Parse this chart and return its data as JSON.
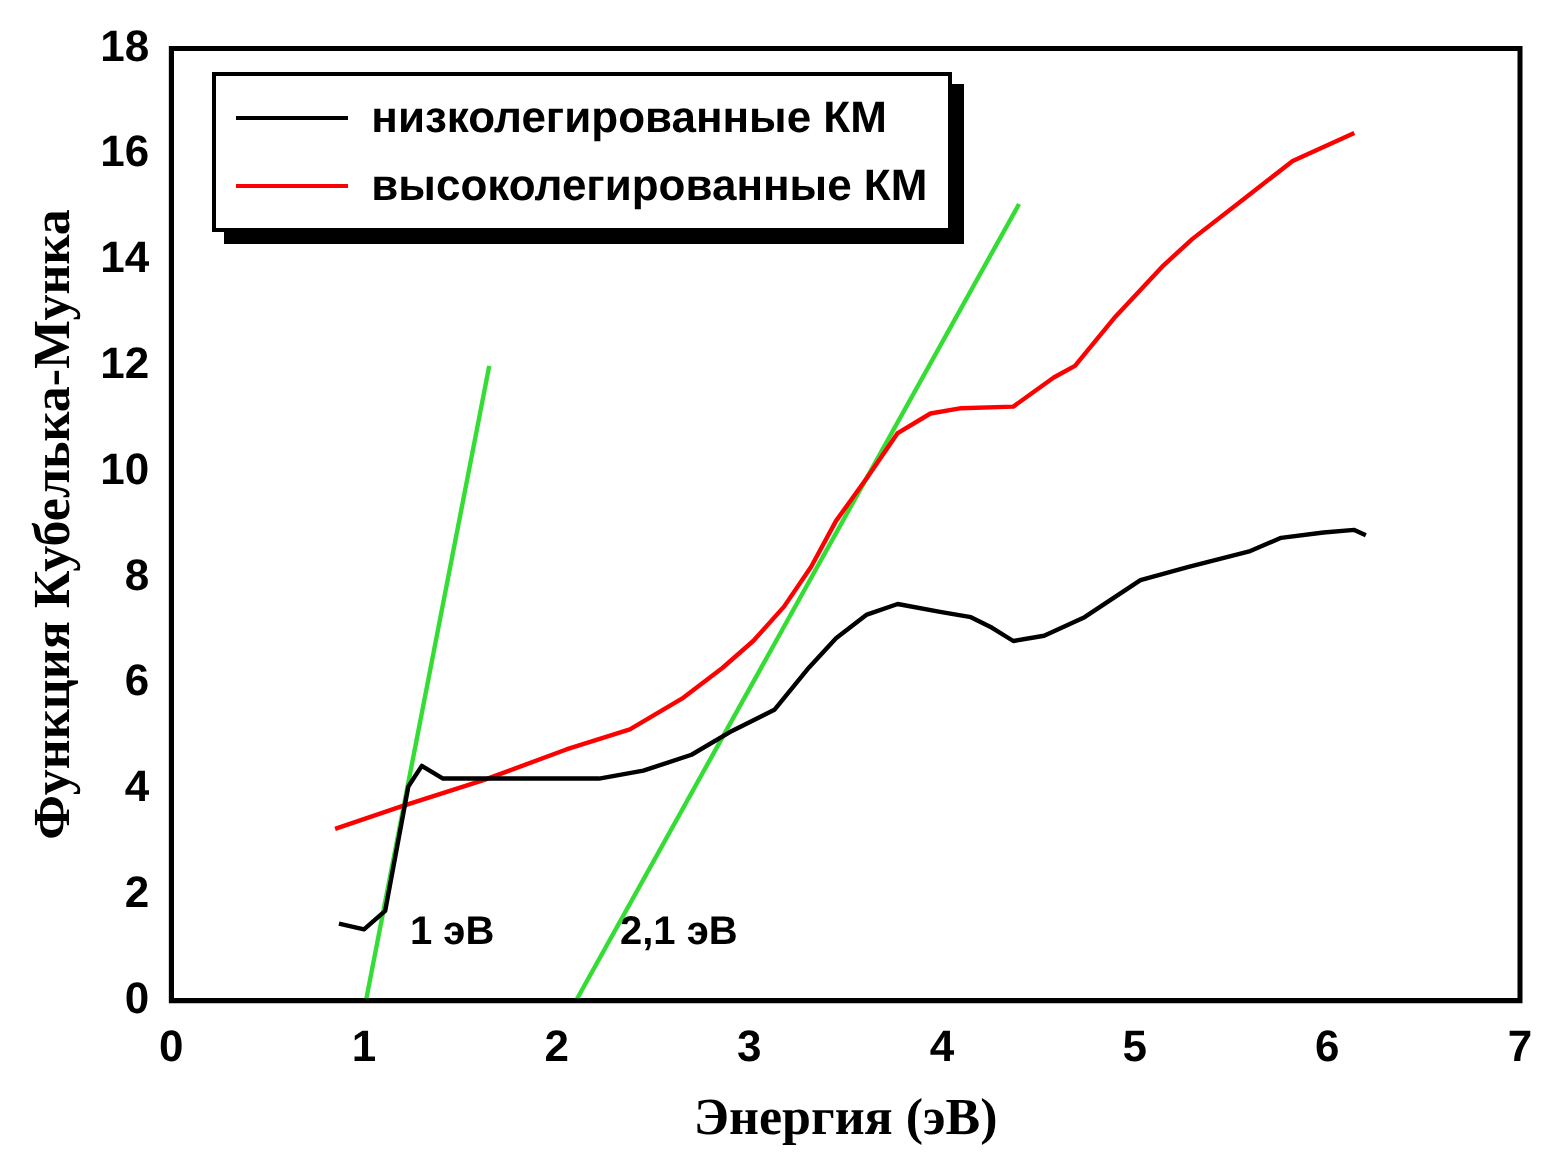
{
  "chart_data": {
    "type": "line",
    "xlabel": "Энергия (эВ)",
    "ylabel": "Функция Кубелька-Мунка",
    "xlim": [
      0,
      7
    ],
    "xticks": [
      0,
      1,
      2,
      3,
      4,
      5,
      6,
      7
    ],
    "ylim": [
      0,
      18
    ],
    "yticks": [
      0,
      2,
      4,
      6,
      8,
      10,
      12,
      14,
      16,
      18
    ],
    "grid": false,
    "legend": "top left",
    "marker": "none",
    "line_style": "solid",
    "series": [
      {
        "name": "низколегированные КМ",
        "color": "#000000",
        "x": [
          0.87,
          1.0,
          1.11,
          1.23,
          1.3,
          1.41,
          1.84,
          2.22,
          2.45,
          2.7,
          2.91,
          3.13,
          3.31,
          3.45,
          3.61,
          3.77,
          3.99,
          4.15,
          4.26,
          4.37,
          4.53,
          4.74,
          5.03,
          5.28,
          5.6,
          5.76,
          5.98,
          6.14,
          6.2
        ],
        "values": [
          1.46,
          1.35,
          1.7,
          4.05,
          4.44,
          4.2,
          4.2,
          4.2,
          4.35,
          4.65,
          5.1,
          5.5,
          6.3,
          6.85,
          7.3,
          7.5,
          7.35,
          7.25,
          7.05,
          6.8,
          6.9,
          7.25,
          7.95,
          8.2,
          8.5,
          8.75,
          8.85,
          8.9,
          8.8
        ]
      },
      {
        "name": "высоколегированные КМ",
        "color": "#ff0000",
        "x": [
          0.85,
          1.19,
          1.62,
          2.05,
          2.38,
          2.65,
          2.86,
          3.02,
          3.18,
          3.32,
          3.45,
          3.61,
          3.77,
          3.94,
          4.1,
          4.37,
          4.58,
          4.69,
          4.9,
          5.15,
          5.3,
          5.6,
          5.82,
          6.14
        ],
        "values": [
          3.25,
          3.67,
          4.17,
          4.75,
          5.13,
          5.71,
          6.29,
          6.8,
          7.45,
          8.2,
          9.07,
          9.88,
          10.73,
          11.1,
          11.2,
          11.23,
          11.78,
          12.0,
          12.93,
          13.9,
          14.4,
          15.25,
          15.87,
          16.4
        ]
      },
      {
        "type": "line",
        "color": "#33dd33",
        "x": [
          1.01,
          1.65
        ],
        "values": [
          0,
          12
        ]
      },
      {
        "type": "line",
        "color": "#33dd33",
        "x": [
          2.1,
          4.4
        ],
        "values": [
          0,
          15.06
        ]
      }
    ],
    "annotations": [
      "1 эВ",
      "2,1 эВ"
    ]
  }
}
